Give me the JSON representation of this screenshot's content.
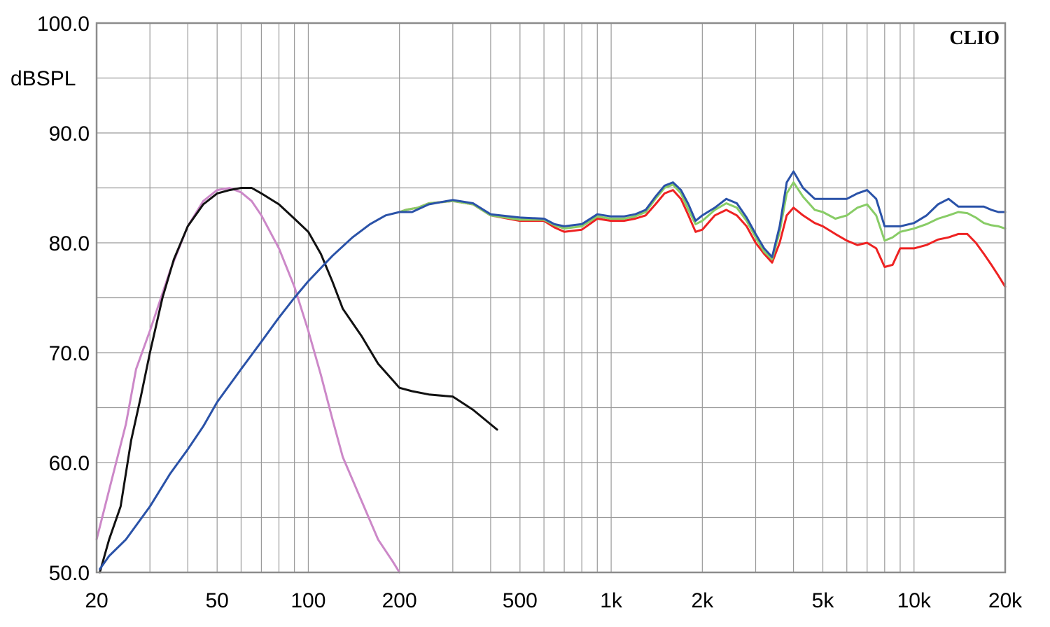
{
  "chart_data": {
    "type": "line",
    "title": "",
    "xlabel": "",
    "ylabel": "dBSPL",
    "brand": "CLIO",
    "x_scale": "log",
    "xlim": [
      20,
      20000
    ],
    "ylim": [
      50,
      100
    ],
    "grid": true,
    "legend": "none",
    "x_ticks": [
      {
        "value": 20,
        "label": "20"
      },
      {
        "value": 50,
        "label": "50"
      },
      {
        "value": 100,
        "label": "100"
      },
      {
        "value": 200,
        "label": "200"
      },
      {
        "value": 500,
        "label": "500"
      },
      {
        "value": 1000,
        "label": "1k"
      },
      {
        "value": 2000,
        "label": "2k"
      },
      {
        "value": 5000,
        "label": "5k"
      },
      {
        "value": 10000,
        "label": "10k"
      },
      {
        "value": 20000,
        "label": "20k"
      }
    ],
    "y_ticks": [
      {
        "value": 100,
        "label": "100.0"
      },
      {
        "value": 90,
        "label": "90.0"
      },
      {
        "value": 80,
        "label": "80.0"
      },
      {
        "value": 70,
        "label": "70.0"
      },
      {
        "value": 60,
        "label": "60.0"
      },
      {
        "value": 50,
        "label": "50.0"
      }
    ],
    "series": [
      {
        "color": "#cc88c8",
        "points": [
          [
            20,
            53
          ],
          [
            22,
            57.5
          ],
          [
            25,
            63.5
          ],
          [
            27,
            68.5
          ],
          [
            30,
            72
          ],
          [
            35,
            77.5
          ],
          [
            40,
            81.5
          ],
          [
            45,
            83.8
          ],
          [
            50,
            84.8
          ],
          [
            55,
            85
          ],
          [
            60,
            84.6
          ],
          [
            65,
            83.8
          ],
          [
            70,
            82.5
          ],
          [
            80,
            79.5
          ],
          [
            90,
            76
          ],
          [
            100,
            72
          ],
          [
            110,
            68
          ],
          [
            120,
            64
          ],
          [
            130,
            60.5
          ],
          [
            150,
            56.5
          ],
          [
            170,
            53
          ],
          [
            190,
            51
          ],
          [
            200,
            50
          ]
        ]
      },
      {
        "color": "#111111",
        "points": [
          [
            20.5,
            50
          ],
          [
            22,
            53
          ],
          [
            24,
            56
          ],
          [
            26,
            62
          ],
          [
            28,
            66
          ],
          [
            30,
            70
          ],
          [
            33,
            75
          ],
          [
            36,
            78.5
          ],
          [
            40,
            81.5
          ],
          [
            45,
            83.5
          ],
          [
            50,
            84.5
          ],
          [
            55,
            84.8
          ],
          [
            60,
            85
          ],
          [
            65,
            85
          ],
          [
            70,
            84.5
          ],
          [
            80,
            83.5
          ],
          [
            90,
            82.2
          ],
          [
            100,
            81
          ],
          [
            110,
            79
          ],
          [
            120,
            76.5
          ],
          [
            130,
            74
          ],
          [
            150,
            71.5
          ],
          [
            170,
            69
          ],
          [
            190,
            67.5
          ],
          [
            200,
            66.8
          ],
          [
            220,
            66.5
          ],
          [
            250,
            66.2
          ],
          [
            300,
            66
          ],
          [
            350,
            64.8
          ],
          [
            420,
            63
          ]
        ]
      },
      {
        "color": "#ee2222",
        "points": [
          [
            200,
            82.8
          ],
          [
            210,
            83
          ],
          [
            230,
            83.2
          ],
          [
            250,
            83.6
          ],
          [
            300,
            83.8
          ],
          [
            350,
            83.5
          ],
          [
            400,
            82.5
          ],
          [
            500,
            82
          ],
          [
            600,
            82
          ],
          [
            650,
            81.4
          ],
          [
            700,
            81
          ],
          [
            800,
            81.2
          ],
          [
            900,
            82.2
          ],
          [
            1000,
            82
          ],
          [
            1100,
            82
          ],
          [
            1200,
            82.2
          ],
          [
            1300,
            82.5
          ],
          [
            1400,
            83.5
          ],
          [
            1500,
            84.5
          ],
          [
            1600,
            84.8
          ],
          [
            1700,
            84
          ],
          [
            1800,
            82.5
          ],
          [
            1900,
            81
          ],
          [
            2000,
            81.2
          ],
          [
            2200,
            82.5
          ],
          [
            2400,
            83
          ],
          [
            2600,
            82.5
          ],
          [
            2800,
            81.5
          ],
          [
            3000,
            80
          ],
          [
            3200,
            79
          ],
          [
            3400,
            78.2
          ],
          [
            3600,
            80
          ],
          [
            3800,
            82.5
          ],
          [
            4000,
            83.2
          ],
          [
            4300,
            82.5
          ],
          [
            4700,
            81.8
          ],
          [
            5000,
            81.5
          ],
          [
            5500,
            80.8
          ],
          [
            6000,
            80.2
          ],
          [
            6500,
            79.8
          ],
          [
            7000,
            80
          ],
          [
            7500,
            79.5
          ],
          [
            8000,
            77.8
          ],
          [
            8500,
            78
          ],
          [
            9000,
            79.5
          ],
          [
            10000,
            79.5
          ],
          [
            11000,
            79.8
          ],
          [
            12000,
            80.3
          ],
          [
            13000,
            80.5
          ],
          [
            14000,
            80.8
          ],
          [
            15000,
            80.8
          ],
          [
            16000,
            80
          ],
          [
            17000,
            79
          ],
          [
            18000,
            78
          ],
          [
            19000,
            77
          ],
          [
            20000,
            76
          ]
        ]
      },
      {
        "color": "#88cc66",
        "points": [
          [
            200,
            82.8
          ],
          [
            210,
            83
          ],
          [
            230,
            83.2
          ],
          [
            250,
            83.6
          ],
          [
            300,
            83.8
          ],
          [
            350,
            83.5
          ],
          [
            400,
            82.5
          ],
          [
            500,
            82.1
          ],
          [
            600,
            82.1
          ],
          [
            650,
            81.6
          ],
          [
            700,
            81.3
          ],
          [
            800,
            81.5
          ],
          [
            900,
            82.4
          ],
          [
            1000,
            82.2
          ],
          [
            1100,
            82.2
          ],
          [
            1200,
            82.4
          ],
          [
            1300,
            82.8
          ],
          [
            1400,
            84
          ],
          [
            1500,
            85
          ],
          [
            1600,
            85.3
          ],
          [
            1700,
            84.5
          ],
          [
            1800,
            83
          ],
          [
            1900,
            81.7
          ],
          [
            2000,
            82
          ],
          [
            2200,
            83
          ],
          [
            2400,
            83.6
          ],
          [
            2600,
            83.2
          ],
          [
            2800,
            82
          ],
          [
            3000,
            80.5
          ],
          [
            3200,
            79.2
          ],
          [
            3400,
            78.5
          ],
          [
            3600,
            81
          ],
          [
            3800,
            84.5
          ],
          [
            4000,
            85.5
          ],
          [
            4300,
            84.2
          ],
          [
            4700,
            83
          ],
          [
            5000,
            82.8
          ],
          [
            5500,
            82.2
          ],
          [
            6000,
            82.5
          ],
          [
            6500,
            83.2
          ],
          [
            7000,
            83.5
          ],
          [
            7500,
            82.5
          ],
          [
            8000,
            80.2
          ],
          [
            8500,
            80.5
          ],
          [
            9000,
            81
          ],
          [
            10000,
            81.3
          ],
          [
            11000,
            81.7
          ],
          [
            12000,
            82.2
          ],
          [
            13000,
            82.5
          ],
          [
            14000,
            82.8
          ],
          [
            15000,
            82.7
          ],
          [
            16000,
            82.3
          ],
          [
            17000,
            81.8
          ],
          [
            18000,
            81.6
          ],
          [
            19000,
            81.5
          ],
          [
            20000,
            81.3
          ]
        ]
      },
      {
        "color": "#2a52a8",
        "points": [
          [
            20.5,
            50.3
          ],
          [
            22,
            51.5
          ],
          [
            25,
            53
          ],
          [
            30,
            56
          ],
          [
            35,
            59
          ],
          [
            40,
            61.2
          ],
          [
            45,
            63.3
          ],
          [
            50,
            65.5
          ],
          [
            60,
            68.5
          ],
          [
            70,
            71
          ],
          [
            80,
            73.2
          ],
          [
            90,
            75
          ],
          [
            100,
            76.5
          ],
          [
            120,
            78.8
          ],
          [
            140,
            80.5
          ],
          [
            160,
            81.7
          ],
          [
            180,
            82.5
          ],
          [
            200,
            82.8
          ],
          [
            220,
            82.8
          ],
          [
            250,
            83.5
          ],
          [
            300,
            83.9
          ],
          [
            350,
            83.6
          ],
          [
            400,
            82.6
          ],
          [
            500,
            82.3
          ],
          [
            600,
            82.2
          ],
          [
            650,
            81.7
          ],
          [
            700,
            81.5
          ],
          [
            800,
            81.7
          ],
          [
            900,
            82.6
          ],
          [
            1000,
            82.4
          ],
          [
            1100,
            82.4
          ],
          [
            1200,
            82.6
          ],
          [
            1300,
            83
          ],
          [
            1400,
            84.2
          ],
          [
            1500,
            85.2
          ],
          [
            1600,
            85.5
          ],
          [
            1700,
            84.8
          ],
          [
            1800,
            83.5
          ],
          [
            1900,
            82
          ],
          [
            2000,
            82.5
          ],
          [
            2200,
            83.2
          ],
          [
            2400,
            84
          ],
          [
            2600,
            83.6
          ],
          [
            2800,
            82.3
          ],
          [
            3000,
            80.8
          ],
          [
            3200,
            79.5
          ],
          [
            3400,
            78.7
          ],
          [
            3600,
            81.5
          ],
          [
            3800,
            85.5
          ],
          [
            4000,
            86.5
          ],
          [
            4300,
            85
          ],
          [
            4700,
            84
          ],
          [
            5000,
            84
          ],
          [
            5500,
            84
          ],
          [
            6000,
            84
          ],
          [
            6500,
            84.5
          ],
          [
            7000,
            84.8
          ],
          [
            7500,
            84
          ],
          [
            8000,
            81.5
          ],
          [
            8500,
            81.5
          ],
          [
            9000,
            81.5
          ],
          [
            10000,
            81.8
          ],
          [
            11000,
            82.5
          ],
          [
            12000,
            83.5
          ],
          [
            13000,
            84
          ],
          [
            14000,
            83.3
          ],
          [
            15000,
            83.3
          ],
          [
            16000,
            83.3
          ],
          [
            17000,
            83.3
          ],
          [
            18000,
            83
          ],
          [
            19000,
            82.8
          ],
          [
            20000,
            82.8
          ]
        ]
      }
    ]
  }
}
